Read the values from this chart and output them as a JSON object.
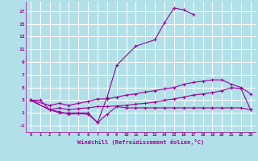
{
  "xlabel": "Windchill (Refroidissement éolien,°C)",
  "line_color": "#990099",
  "bg_color": "#b2e0e8",
  "grid_color": "#ffffff",
  "ylim": [
    -2,
    18.5
  ],
  "xlim": [
    -0.5,
    23.5
  ],
  "yticks": [
    -1,
    1,
    3,
    5,
    7,
    9,
    11,
    13,
    15,
    17
  ],
  "xticks": [
    0,
    1,
    2,
    3,
    4,
    5,
    6,
    7,
    8,
    9,
    10,
    11,
    12,
    13,
    14,
    15,
    16,
    17,
    18,
    19,
    20,
    21,
    22,
    23
  ],
  "line1_x": [
    0,
    1,
    2,
    3,
    4,
    5,
    6,
    7,
    8,
    9,
    11,
    13,
    14,
    15,
    16,
    17
  ],
  "line1_y": [
    3,
    3,
    1.5,
    1,
    1,
    1,
    1,
    -0.5,
    3.5,
    8.5,
    11.5,
    12.5,
    15.2,
    17.5,
    17.2,
    16.5
  ],
  "line2_x": [
    0,
    2,
    3,
    4,
    5,
    6,
    7,
    8,
    9,
    10,
    11,
    12,
    13,
    14,
    15,
    16,
    17,
    18,
    19,
    20,
    21,
    22,
    23
  ],
  "line2_y": [
    3,
    2.2,
    2.5,
    2.2,
    2.5,
    2.8,
    3.2,
    3.2,
    3.5,
    3.8,
    4.0,
    4.3,
    4.5,
    4.8,
    5.0,
    5.5,
    5.8,
    6.0,
    6.2,
    6.2,
    5.5,
    5.0,
    4.0
  ],
  "line3_x": [
    0,
    2,
    3,
    4,
    5,
    6,
    7,
    8,
    9,
    10,
    11,
    12,
    13,
    14,
    15,
    16,
    17,
    18,
    19,
    20,
    21,
    22,
    23
  ],
  "line3_y": [
    3,
    1.5,
    1.8,
    1.5,
    1.7,
    1.8,
    2.0,
    2.0,
    2.1,
    2.2,
    2.4,
    2.5,
    2.7,
    3.0,
    3.2,
    3.5,
    3.8,
    4.0,
    4.2,
    4.5,
    5.0,
    4.8,
    1.5
  ],
  "line4_x": [
    0,
    2,
    3,
    4,
    5,
    6,
    7,
    8,
    9,
    10,
    11,
    12,
    13,
    14,
    15,
    16,
    17,
    18,
    19,
    20,
    21,
    22,
    23
  ],
  "line4_y": [
    3,
    1.5,
    1.2,
    0.8,
    0.9,
    0.8,
    -0.5,
    0.8,
    2.0,
    1.8,
    1.8,
    1.8,
    1.8,
    1.8,
    1.8,
    1.8,
    1.8,
    1.8,
    1.8,
    1.8,
    1.8,
    1.8,
    1.5
  ]
}
